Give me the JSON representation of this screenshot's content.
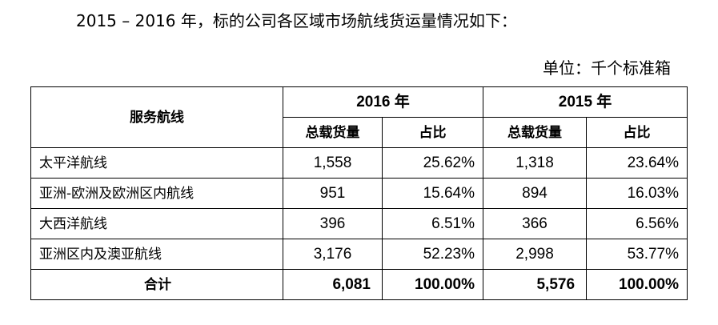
{
  "intro_text": "2015 – 2016 年，标的公司各区域市场航线货运量情况如下：",
  "unit_text": "单位：千个标准箱",
  "table": {
    "route_header": "服务航线",
    "years": [
      "2016 年",
      "2015 年"
    ],
    "sub_headers": {
      "volume": "总载货量",
      "share": "占比"
    },
    "rows": [
      {
        "route": "太平洋航线",
        "v2016": "1,558",
        "s2016": "25.62%",
        "v2015": "1,318",
        "s2015": "23.64%"
      },
      {
        "route": "亚洲-欧洲及欧洲区内航线",
        "v2016": "951",
        "s2016": "15.64%",
        "v2015": "894",
        "s2015": "16.03%"
      },
      {
        "route": "大西洋航线",
        "v2016": "396",
        "s2016": "6.51%",
        "v2015": "366",
        "s2015": "6.56%"
      },
      {
        "route": "亚洲区内及澳亚航线",
        "v2016": "3,176",
        "s2016": "52.23%",
        "v2015": "2,998",
        "s2015": "53.77%"
      }
    ],
    "total": {
      "route": "合计",
      "v2016": "6,081",
      "s2016": "100.00%",
      "v2015": "5,576",
      "s2015": "100.00%"
    }
  }
}
